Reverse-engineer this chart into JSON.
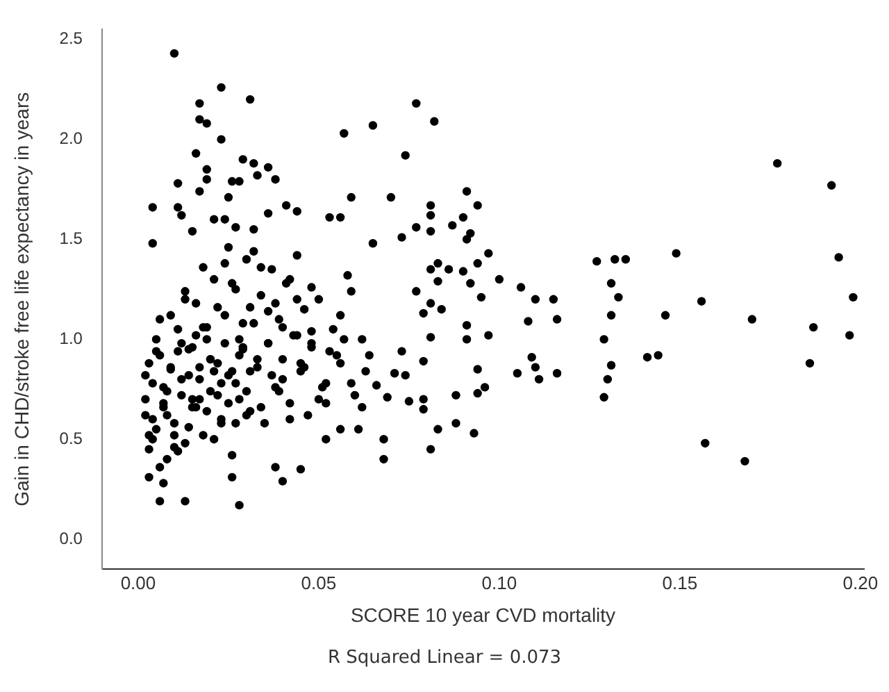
{
  "chart_data": {
    "type": "scatter",
    "xlabel": "SCORE 10 year CVD mortality",
    "ylabel": "Gain in CHD/stroke free life expectancy in years",
    "annotations": [
      "R Squared Linear = 0.073"
    ],
    "xlim": [
      -0.01,
      0.201
    ],
    "ylim": [
      -0.15,
      2.55
    ],
    "xticks": [
      {
        "value": 0,
        "label": "0.00"
      },
      {
        "value": 0.05,
        "label": "0.05"
      },
      {
        "value": 0.1,
        "label": "0.10"
      },
      {
        "value": 0.15,
        "label": "0.15"
      },
      {
        "value": 0.2,
        "label": "0.20"
      }
    ],
    "yticks": [
      {
        "value": 0,
        "label": "0.0"
      },
      {
        "value": 0.5,
        "label": "0.5"
      },
      {
        "value": 1,
        "label": "1.0"
      },
      {
        "value": 1.5,
        "label": "1.5"
      },
      {
        "value": 2,
        "label": "2.0"
      },
      {
        "value": 2.5,
        "label": "2.5"
      }
    ],
    "grid": false,
    "legend": false,
    "marker": "circle",
    "series": [
      {
        "color": "#000000",
        "x": [
          0.01,
          0.023,
          0.017,
          0.031,
          0.017,
          0.019,
          0.023,
          0.057,
          0.065,
          0.016,
          0.019,
          0.019,
          0.029,
          0.032,
          0.036,
          0.038,
          0.011,
          0.026,
          0.028,
          0.033,
          0.017,
          0.025,
          0.059,
          0.004,
          0.011,
          0.012,
          0.041,
          0.044,
          0.036,
          0.021,
          0.024,
          0.027,
          0.053,
          0.056,
          0.032,
          0.015,
          0.004,
          0.065,
          0.003,
          0.007,
          0.006,
          0.013,
          0.028,
          0.038,
          0.04,
          0.045,
          0.052,
          0.056,
          0.061,
          0.026,
          0.077,
          0.082,
          0.074,
          0.07,
          0.091,
          0.094,
          0.081,
          0.081,
          0.077,
          0.09,
          0.087,
          0.092,
          0.091,
          0.081,
          0.073,
          0.097,
          0.094,
          0.083,
          0.081,
          0.086,
          0.09,
          0.1,
          0.092,
          0.083,
          0.106,
          0.077,
          0.095,
          0.11,
          0.115,
          0.081,
          0.079,
          0.084,
          0.108,
          0.116,
          0.091,
          0.097,
          0.081,
          0.091,
          0.073,
          0.109,
          0.079,
          0.11,
          0.105,
          0.116,
          0.094,
          0.111,
          0.096,
          0.094,
          0.088,
          0.079,
          0.075,
          0.069,
          0.079,
          0.093,
          0.088,
          0.083,
          0.068,
          0.081,
          0.068,
          0.074,
          0.071,
          0.066,
          0.127,
          0.132,
          0.135,
          0.131,
          0.133,
          0.131,
          0.129,
          0.131,
          0.13,
          0.129,
          0.141,
          0.144,
          0.146,
          0.149,
          0.156,
          0.157,
          0.168,
          0.17,
          0.177,
          0.192,
          0.194,
          0.198,
          0.197,
          0.187,
          0.186,
          0.002,
          0.003,
          0.004,
          0.005,
          0.006,
          0.007,
          0.008,
          0.009,
          0.01,
          0.011,
          0.012,
          0.013,
          0.014,
          0.015,
          0.016,
          0.017,
          0.018,
          0.019,
          0.02,
          0.021,
          0.022,
          0.023,
          0.024,
          0.025,
          0.026,
          0.027,
          0.028,
          0.029,
          0.03,
          0.031,
          0.032,
          0.033,
          0.034,
          0.035,
          0.036,
          0.037,
          0.038,
          0.039,
          0.04,
          0.041,
          0.042,
          0.043,
          0.044,
          0.045,
          0.046,
          0.047,
          0.048,
          0.05,
          0.052,
          0.054,
          0.056,
          0.058,
          0.06,
          0.062,
          0.064,
          0.002,
          0.003,
          0.004,
          0.005,
          0.006,
          0.007,
          0.008,
          0.009,
          0.01,
          0.011,
          0.012,
          0.013,
          0.014,
          0.015,
          0.016,
          0.017,
          0.018,
          0.019,
          0.02,
          0.021,
          0.022,
          0.023,
          0.024,
          0.025,
          0.026,
          0.027,
          0.028,
          0.029,
          0.03,
          0.031,
          0.032,
          0.034,
          0.036,
          0.038,
          0.04,
          0.042,
          0.044,
          0.046,
          0.048,
          0.05,
          0.053,
          0.056,
          0.059,
          0.062,
          0.002,
          0.004,
          0.006,
          0.008,
          0.01,
          0.012,
          0.014,
          0.016,
          0.018,
          0.02,
          0.022,
          0.024,
          0.026,
          0.028,
          0.03,
          0.033,
          0.036,
          0.039,
          0.042,
          0.045,
          0.048,
          0.051,
          0.055,
          0.059,
          0.063,
          0.003,
          0.005,
          0.007,
          0.009,
          0.011,
          0.013,
          0.015,
          0.017,
          0.019,
          0.021,
          0.023,
          0.025,
          0.027,
          0.029,
          0.031,
          0.034,
          0.037,
          0.04,
          0.044,
          0.048,
          0.052,
          0.057
        ],
        "values": [
          2.43,
          2.26,
          2.18,
          2.2,
          2.1,
          2.08,
          2.0,
          2.03,
          2.07,
          1.93,
          1.85,
          1.8,
          1.9,
          1.88,
          1.86,
          1.8,
          1.78,
          1.79,
          1.79,
          1.82,
          1.74,
          1.71,
          1.71,
          1.66,
          1.66,
          1.62,
          1.67,
          1.64,
          1.63,
          1.6,
          1.6,
          1.56,
          1.61,
          1.61,
          1.55,
          1.54,
          1.48,
          1.48,
          0.31,
          0.28,
          0.19,
          0.19,
          0.17,
          0.36,
          0.29,
          0.35,
          0.5,
          0.55,
          0.55,
          0.31,
          2.18,
          2.09,
          1.92,
          1.71,
          1.74,
          1.67,
          1.67,
          1.62,
          1.56,
          1.61,
          1.57,
          1.53,
          1.5,
          1.54,
          1.51,
          1.43,
          1.38,
          1.38,
          1.35,
          1.35,
          1.34,
          1.3,
          1.28,
          1.29,
          1.26,
          1.24,
          1.21,
          1.2,
          1.2,
          1.18,
          1.13,
          1.15,
          1.09,
          1.1,
          1.07,
          1.02,
          1.01,
          1.0,
          0.94,
          0.91,
          0.89,
          0.86,
          0.83,
          0.83,
          0.85,
          0.8,
          0.76,
          0.73,
          0.72,
          0.7,
          0.69,
          0.71,
          0.65,
          0.53,
          0.58,
          0.55,
          0.5,
          0.45,
          0.4,
          0.82,
          0.83,
          0.77,
          1.39,
          1.4,
          1.4,
          1.28,
          1.21,
          1.12,
          1.0,
          0.87,
          0.8,
          0.71,
          0.91,
          0.92,
          1.12,
          1.43,
          1.19,
          0.48,
          0.39,
          1.1,
          1.88,
          1.77,
          1.41,
          1.21,
          1.02,
          1.06,
          0.88,
          0.62,
          0.45,
          0.78,
          0.55,
          0.92,
          0.68,
          0.4,
          0.85,
          0.58,
          1.05,
          0.72,
          0.48,
          0.95,
          0.66,
          1.18,
          0.8,
          0.52,
          1.0,
          0.74,
          1.3,
          0.88,
          0.6,
          1.12,
          0.82,
          0.42,
          1.25,
          0.7,
          0.95,
          1.4,
          0.64,
          1.08,
          0.86,
          1.22,
          0.58,
          0.98,
          1.35,
          0.76,
          1.1,
          0.9,
          1.28,
          0.68,
          1.02,
          1.42,
          0.84,
          1.15,
          0.62,
          0.96,
          1.2,
          0.78,
          1.05,
          0.88,
          1.32,
          0.72,
          1.0,
          0.92,
          0.7,
          0.88,
          0.5,
          1.0,
          0.36,
          0.76,
          0.62,
          1.12,
          0.46,
          0.94,
          0.8,
          1.24,
          0.56,
          0.7,
          1.02,
          0.86,
          1.36,
          0.64,
          0.9,
          0.5,
          1.16,
          0.78,
          0.98,
          0.68,
          1.28,
          0.58,
          0.92,
          1.08,
          0.74,
          0.84,
          1.44,
          0.66,
          0.98,
          1.18,
          0.8,
          0.6,
          1.02,
          0.86,
          1.26,
          0.7,
          0.94,
          1.12,
          0.78,
          0.66,
          0.82,
          0.6,
          1.1,
          0.74,
          0.52,
          0.98,
          0.82,
          0.66,
          1.06,
          0.9,
          0.72,
          1.38,
          0.84,
          1.0,
          0.62,
          0.9,
          1.14,
          0.74,
          1.3,
          0.88,
          1.04,
          0.76,
          0.92,
          1.24,
          0.84,
          0.52,
          0.94,
          0.66,
          0.86,
          0.44,
          1.2,
          0.96,
          0.7,
          1.06,
          0.84,
          0.58,
          1.46,
          0.78,
          0.96,
          1.16,
          1.36,
          0.82,
          1.06,
          1.2,
          0.98,
          0.68,
          1.0
        ]
      }
    ]
  }
}
